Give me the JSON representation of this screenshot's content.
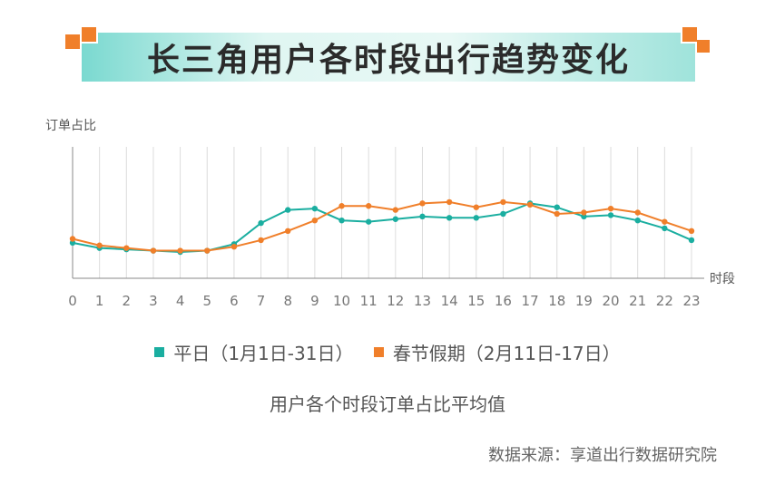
{
  "title": "长三角用户各时段出行趋势变化",
  "subtitle": "用户各个时段订单占比平均值",
  "source": "数据来源：享道出行数据研究院",
  "colors": {
    "weekday": "#1aaea0",
    "holiday": "#f07f2a",
    "accent": "#f07f2a"
  },
  "chart_data": {
    "type": "line",
    "ylabel": "订单占比",
    "xlabel": "时段",
    "ylim": [
      0,
      100
    ],
    "x": [
      "0",
      "1",
      "2",
      "3",
      "4",
      "5",
      "6",
      "7",
      "8",
      "9",
      "10",
      "11",
      "12",
      "13",
      "14",
      "15",
      "16",
      "17",
      "18",
      "19",
      "20",
      "21",
      "22",
      "23"
    ],
    "grid": "vertical",
    "legend_position": "bottom",
    "series": [
      {
        "name": "平日（1月1日-31日）",
        "color": "#1aaea0",
        "values": [
          27,
          23,
          22,
          21,
          20,
          21,
          26,
          42,
          52,
          53,
          44,
          43,
          45,
          47,
          46,
          46,
          49,
          57,
          54,
          47,
          48,
          44,
          38,
          29
        ]
      },
      {
        "name": "春节假期（2月11日-17日）",
        "color": "#f07f2a",
        "values": [
          30,
          25,
          23,
          21,
          21,
          21,
          24,
          29,
          36,
          44,
          55,
          55,
          52,
          57,
          58,
          54,
          58,
          56,
          49,
          50,
          53,
          50,
          43,
          36
        ]
      }
    ]
  }
}
